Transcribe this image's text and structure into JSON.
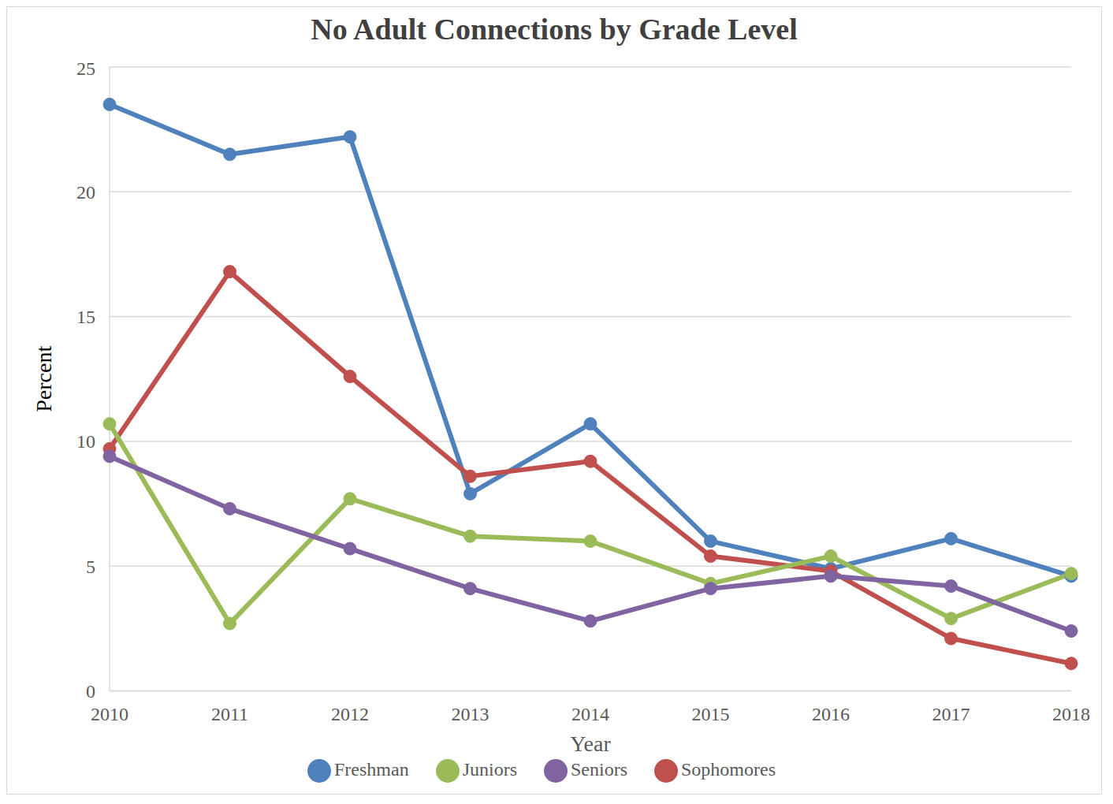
{
  "chart_data": {
    "type": "line",
    "title": "No Adult Connections by Grade Level",
    "x_label": "Year",
    "y_label": "Percent",
    "categories": [
      "2010",
      "2011",
      "2012",
      "2013",
      "2014",
      "2015",
      "2016",
      "2017",
      "2018"
    ],
    "series": [
      {
        "name": "Freshman",
        "color": "#4f81bd",
        "marker": "circle",
        "values": [
          23.5,
          21.5,
          22.2,
          7.9,
          10.7,
          6.0,
          4.9,
          6.1,
          4.6
        ]
      },
      {
        "name": "Sophomores",
        "color": "#c0504d",
        "marker": "circle",
        "values": [
          9.7,
          16.8,
          12.6,
          8.6,
          9.2,
          5.4,
          4.8,
          2.1,
          1.1
        ]
      },
      {
        "name": "Juniors",
        "color": "#9bbb59",
        "marker": "circle",
        "values": [
          10.7,
          2.7,
          7.7,
          6.2,
          6.0,
          4.3,
          5.4,
          2.9,
          4.7
        ]
      },
      {
        "name": "Seniors",
        "color": "#8064a2",
        "marker": "circle",
        "values": [
          9.4,
          7.3,
          5.7,
          4.1,
          2.8,
          4.1,
          4.6,
          4.2,
          2.4
        ]
      }
    ],
    "ylim": [
      0,
      25
    ],
    "yticks": [
      0,
      5,
      10,
      15,
      20,
      25
    ],
    "grid": true,
    "legend": "bottom"
  }
}
